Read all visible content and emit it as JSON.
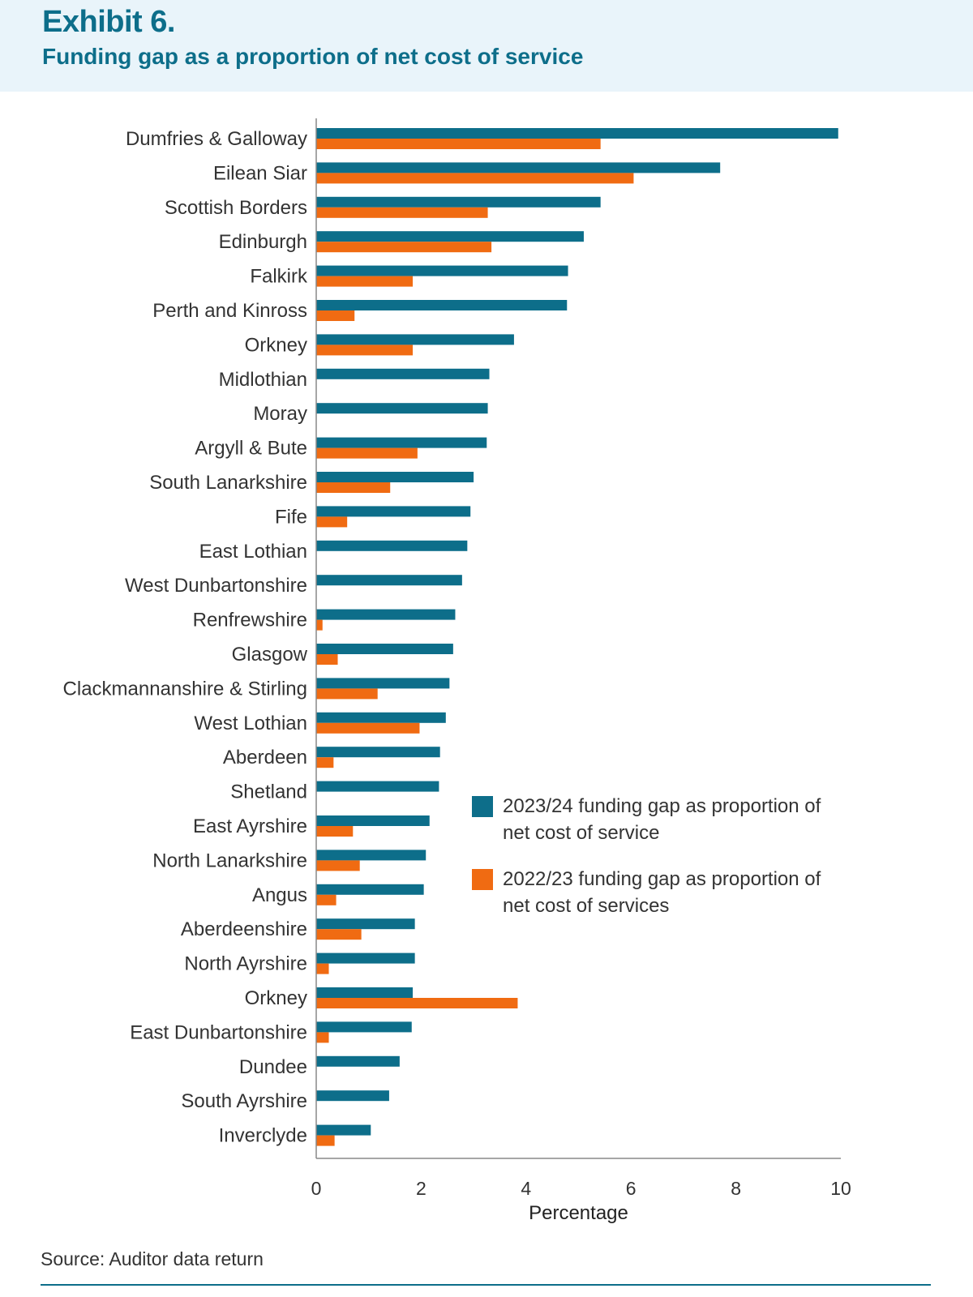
{
  "exhibit_label": "Exhibit 6.",
  "title": "Funding gap as a proportion of net cost of service",
  "source": "Source: Auditor data return",
  "colors": {
    "series_2023": "#0d6e8a",
    "series_2022": "#f06b12",
    "header_bg": "#e9f4fa",
    "title": "#0d6e8a"
  },
  "chart_data": {
    "type": "bar",
    "orientation": "horizontal",
    "xlabel": "Percentage",
    "xlim": [
      0,
      10
    ],
    "xticks": [
      0,
      2,
      4,
      6,
      8,
      10
    ],
    "grid": false,
    "legend_position": "right",
    "categories": [
      "Dumfries & Galloway",
      "Eilean Siar",
      "Scottish Borders",
      "Edinburgh",
      "Falkirk",
      "Perth and Kinross",
      "Orkney",
      "Midlothian",
      "Moray",
      "Argyll & Bute",
      "South Lanarkshire",
      "Fife",
      "East Lothian",
      "West Dunbartonshire",
      "Renfrewshire",
      "Glasgow",
      "Clackmannanshire & Stirling",
      "West Lothian",
      "Aberdeen",
      "Shetland",
      "East Ayrshire",
      "North Lanarkshire",
      "Angus",
      "Aberdeenshire",
      "North Ayrshire",
      "Orkney",
      "East Dunbartonshire",
      "Dundee",
      "South Ayrshire",
      "Inverclyde"
    ],
    "series": [
      {
        "name": "2023/24 funding gap as proportion of net cost of service",
        "values": [
          9.95,
          7.7,
          5.42,
          5.1,
          4.8,
          4.78,
          3.77,
          3.3,
          3.27,
          3.25,
          3.0,
          2.94,
          2.88,
          2.78,
          2.65,
          2.61,
          2.54,
          2.47,
          2.36,
          2.34,
          2.16,
          2.09,
          2.05,
          1.88,
          1.88,
          1.84,
          1.82,
          1.59,
          1.39,
          1.04
        ]
      },
      {
        "name": "2022/23 funding gap as proportion of net cost of services",
        "values": [
          5.42,
          6.05,
          3.27,
          3.34,
          1.84,
          0.73,
          1.84,
          0,
          0,
          1.93,
          1.41,
          0.59,
          0,
          0,
          0.12,
          0.41,
          1.17,
          1.97,
          0.33,
          0,
          0.7,
          0.83,
          0.38,
          0.86,
          0.24,
          3.84,
          0.24,
          0,
          0,
          0.35
        ]
      }
    ]
  }
}
